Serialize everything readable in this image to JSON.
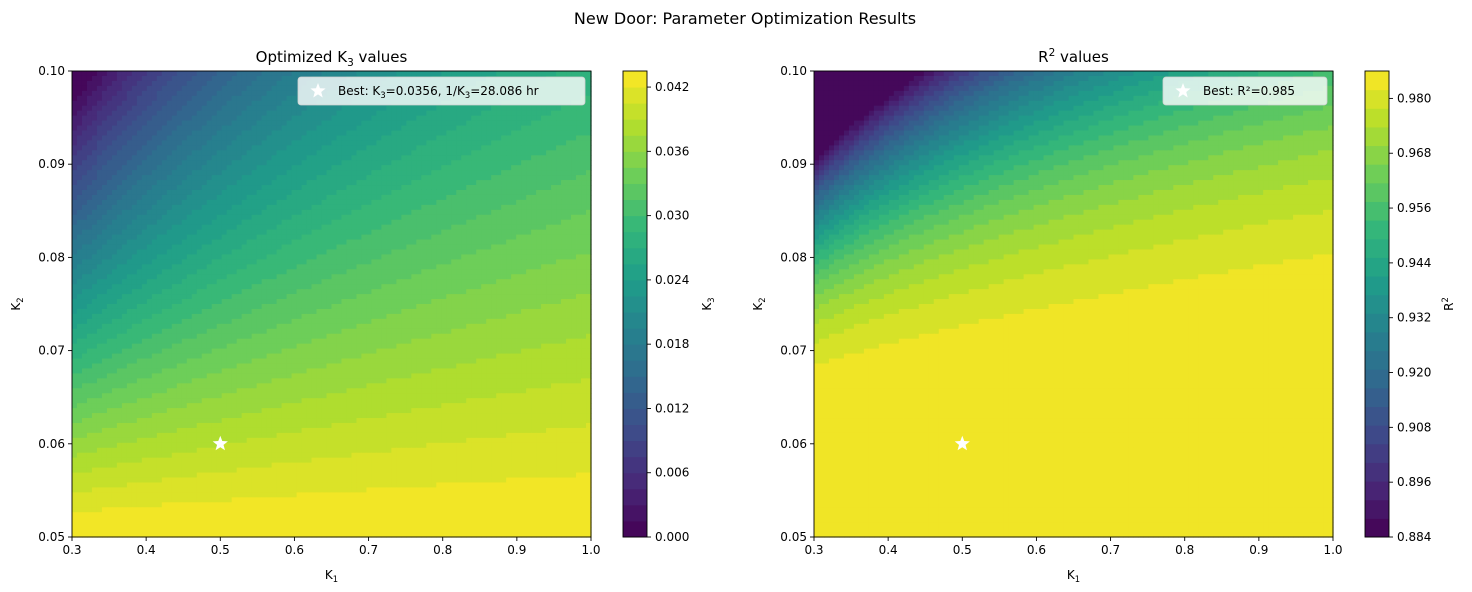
{
  "figure": {
    "suptitle": "New Door: Parameter Optimization Results"
  },
  "chart_data": [
    {
      "type": "heatmap",
      "subtype": "filled-contour",
      "title_main": "Optimized K",
      "title_sub": "3",
      "title_rest": " values",
      "xlabel_main": "K",
      "xlabel_sub": "1",
      "ylabel_main": "K",
      "ylabel_sub": "2",
      "xlim": [
        0.3,
        1.0
      ],
      "ylim": [
        0.05,
        0.1
      ],
      "xticks": [
        "0.3",
        "0.4",
        "0.5",
        "0.6",
        "0.7",
        "0.8",
        "0.9",
        "1.0"
      ],
      "xtick_values": [
        0.3,
        0.4,
        0.5,
        0.6,
        0.7,
        0.8,
        0.9,
        1.0
      ],
      "yticks": [
        "0.05",
        "0.06",
        "0.07",
        "0.08",
        "0.09",
        "0.10"
      ],
      "ytick_values": [
        0.05,
        0.06,
        0.07,
        0.08,
        0.09,
        0.1
      ],
      "colormap": "viridis",
      "colorbar": {
        "label_main": "K",
        "label_sub": "3",
        "range": [
          0.0,
          0.0435
        ],
        "levels_step": 0.0015,
        "ticks": [
          "0.000",
          "0.006",
          "0.012",
          "0.018",
          "0.024",
          "0.030",
          "0.036",
          "0.042"
        ],
        "tick_values": [
          0.0,
          0.006,
          0.012,
          0.018,
          0.024,
          0.03,
          0.036,
          0.042
        ]
      },
      "best_point": {
        "x": 0.5,
        "y": 0.06,
        "marker": "star",
        "color": "#ffffff"
      },
      "legend": {
        "placement": "upper-right",
        "text_parts": [
          "Best: K",
          "3",
          "=0.0356, 1/K",
          "3",
          "=28.086 hr"
        ]
      }
    },
    {
      "type": "heatmap",
      "subtype": "filled-contour",
      "title_main": "R",
      "title_sup": "2",
      "title_rest": " values",
      "xlabel_main": "K",
      "xlabel_sub": "1",
      "ylabel_main": "K",
      "ylabel_sub": "2",
      "xlim": [
        0.3,
        1.0
      ],
      "ylim": [
        0.05,
        0.1
      ],
      "xticks": [
        "0.3",
        "0.4",
        "0.5",
        "0.6",
        "0.7",
        "0.8",
        "0.9",
        "1.0"
      ],
      "xtick_values": [
        0.3,
        0.4,
        0.5,
        0.6,
        0.7,
        0.8,
        0.9,
        1.0
      ],
      "yticks": [
        "0.05",
        "0.06",
        "0.07",
        "0.08",
        "0.09",
        "0.10"
      ],
      "ytick_values": [
        0.05,
        0.06,
        0.07,
        0.08,
        0.09,
        0.1
      ],
      "colormap": "viridis",
      "colorbar": {
        "label_main": "R",
        "label_sup": "2",
        "range": [
          0.884,
          0.986
        ],
        "levels_step": 0.004,
        "ticks": [
          "0.884",
          "0.896",
          "0.908",
          "0.920",
          "0.932",
          "0.944",
          "0.956",
          "0.968",
          "0.980"
        ],
        "tick_values": [
          0.884,
          0.896,
          0.908,
          0.92,
          0.932,
          0.944,
          0.956,
          0.968,
          0.98
        ]
      },
      "best_point": {
        "x": 0.5,
        "y": 0.06,
        "marker": "star",
        "color": "#ffffff"
      },
      "legend": {
        "placement": "upper-right",
        "text_parts": [
          "Best: R²=0.985"
        ]
      }
    }
  ]
}
